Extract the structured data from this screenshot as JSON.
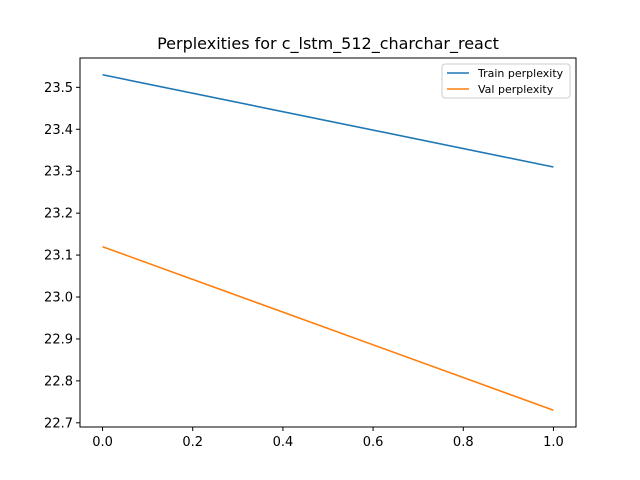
{
  "chart_data": {
    "type": "line",
    "title": "Perplexities for c_lstm_512_charchar_react",
    "xlabel": "",
    "ylabel": "",
    "xlim": [
      -0.05,
      1.05
    ],
    "ylim": [
      22.69,
      23.57
    ],
    "x_ticks": [
      0.0,
      0.2,
      0.4,
      0.6,
      0.8,
      1.0
    ],
    "x_tick_labels": [
      "0.0",
      "0.2",
      "0.4",
      "0.6",
      "0.8",
      "1.0"
    ],
    "y_ticks": [
      22.7,
      22.8,
      22.9,
      23.0,
      23.1,
      23.2,
      23.3,
      23.4,
      23.5
    ],
    "y_tick_labels": [
      "22.7",
      "22.8",
      "22.9",
      "23.0",
      "23.1",
      "23.2",
      "23.3",
      "23.4",
      "23.5"
    ],
    "grid": false,
    "legend_position": "top-right",
    "series": [
      {
        "name": "Train perplexity",
        "color": "#1f77b4",
        "x": [
          0,
          1
        ],
        "y": [
          23.53,
          23.31
        ]
      },
      {
        "name": "Val perplexity",
        "color": "#ff7f0e",
        "x": [
          0,
          1
        ],
        "y": [
          23.12,
          22.73
        ]
      }
    ]
  }
}
